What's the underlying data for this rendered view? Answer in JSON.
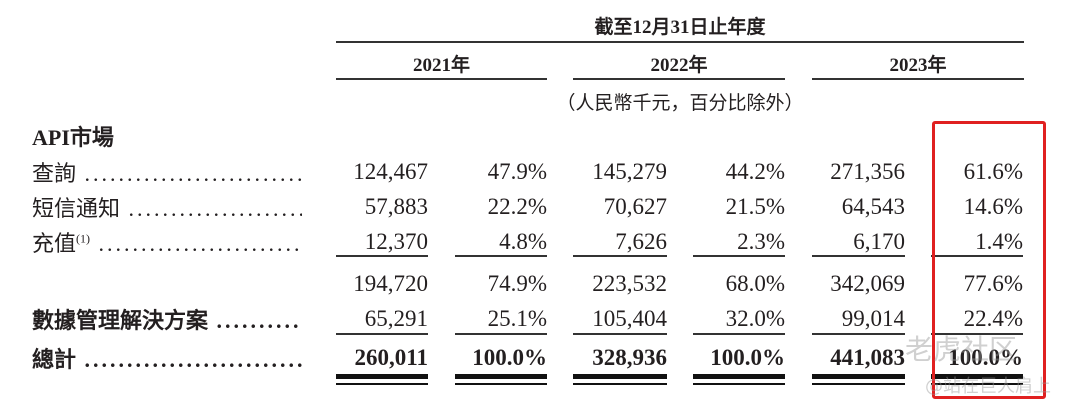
{
  "header": {
    "period": "截至12月31日止年度",
    "years": [
      "2021年",
      "2022年",
      "2023年"
    ],
    "unit_note": "（人民幣千元，百分比除外）"
  },
  "rows": [
    {
      "label": "API市場",
      "bold": true,
      "values": []
    },
    {
      "label": "查詢",
      "values": [
        "124,467",
        "47.9%",
        "145,279",
        "44.2%",
        "271,356",
        "61.6%"
      ]
    },
    {
      "label": "短信通知",
      "values": [
        "57,883",
        "22.2%",
        "70,627",
        "21.5%",
        "64,543",
        "14.6%"
      ]
    },
    {
      "label": "充值",
      "sup": "(1)",
      "values": [
        "12,370",
        "4.8%",
        "7,626",
        "2.3%",
        "6,170",
        "1.4%"
      ]
    },
    {
      "label": "",
      "values": [
        "194,720",
        "74.9%",
        "223,532",
        "68.0%",
        "342,069",
        "77.6%"
      ]
    },
    {
      "label": "數據管理解決方案",
      "bold": true,
      "values": [
        "65,291",
        "25.1%",
        "105,404",
        "32.0%",
        "99,014",
        "22.4%"
      ]
    },
    {
      "label": "總計",
      "bold": true,
      "values": [
        "260,011",
        "100.0%",
        "328,936",
        "100.0%",
        "441,083",
        "100.0%"
      ]
    }
  ],
  "highlight_color": "#e02020",
  "watermark": {
    "line1": "老虎社区",
    "line2": "@站在巨人肩上"
  }
}
